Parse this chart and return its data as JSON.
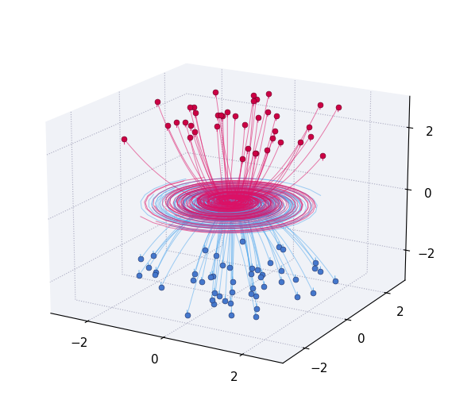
{
  "blue_color": "#55aaee",
  "red_color": "#dd1166",
  "blue_dot_color": "#4477cc",
  "red_dot_color": "#cc0044",
  "n_blue": 50,
  "n_red": 40,
  "n_steps": 120,
  "seed": 7,
  "elev": 18,
  "azim": -60,
  "figsize": [
    5.69,
    5.28
  ],
  "dpi": 100,
  "pane_color": [
    0.94,
    0.95,
    0.97,
    1.0
  ],
  "xlim": [
    -3,
    3
  ],
  "ylim": [
    -3,
    3
  ],
  "zlim": [
    -3,
    3
  ],
  "xticks": [
    -2,
    0,
    2
  ],
  "yticks": [
    -2,
    0,
    2
  ],
  "zticks": [
    -2,
    0,
    2
  ]
}
